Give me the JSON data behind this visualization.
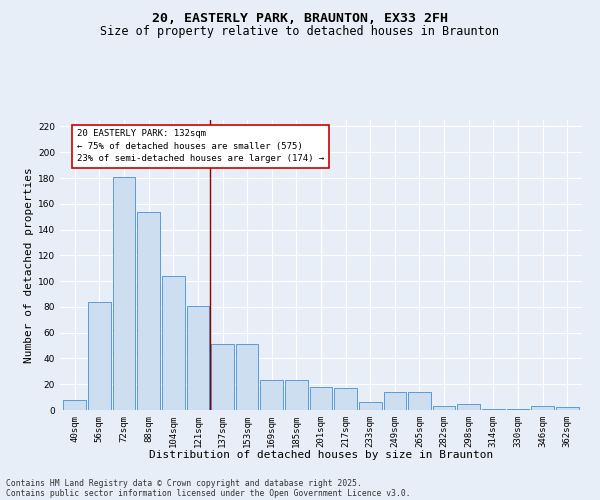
{
  "title_line1": "20, EASTERLY PARK, BRAUNTON, EX33 2FH",
  "title_line2": "Size of property relative to detached houses in Braunton",
  "xlabel": "Distribution of detached houses by size in Braunton",
  "ylabel": "Number of detached properties",
  "categories": [
    "40sqm",
    "56sqm",
    "72sqm",
    "88sqm",
    "104sqm",
    "121sqm",
    "137sqm",
    "153sqm",
    "169sqm",
    "185sqm",
    "201sqm",
    "217sqm",
    "233sqm",
    "249sqm",
    "265sqm",
    "282sqm",
    "298sqm",
    "314sqm",
    "330sqm",
    "346sqm",
    "362sqm"
  ],
  "values": [
    8,
    84,
    181,
    154,
    104,
    81,
    51,
    51,
    23,
    23,
    18,
    17,
    6,
    14,
    14,
    3,
    5,
    1,
    1,
    3,
    2
  ],
  "bar_color": "#ccdef0",
  "bar_edge_color": "#5b9bd5",
  "vline_color": "#8b0000",
  "annotation_text": "20 EASTERLY PARK: 132sqm\n← 75% of detached houses are smaller (575)\n23% of semi-detached houses are larger (174) →",
  "annotation_box_color": "#ffffff",
  "annotation_box_edge": "#cc0000",
  "ylim": [
    0,
    225
  ],
  "yticks": [
    0,
    20,
    40,
    60,
    80,
    100,
    120,
    140,
    160,
    180,
    200,
    220
  ],
  "background_color": "#e8eef8",
  "footer_line1": "Contains HM Land Registry data © Crown copyright and database right 2025.",
  "footer_line2": "Contains public sector information licensed under the Open Government Licence v3.0.",
  "title_fontsize": 9.5,
  "subtitle_fontsize": 8.5,
  "tick_fontsize": 6.5,
  "label_fontsize": 8,
  "footer_fontsize": 5.8
}
